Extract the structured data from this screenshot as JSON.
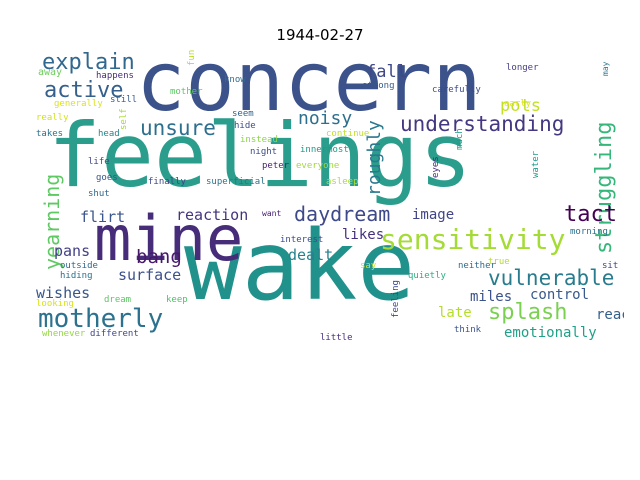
{
  "title": "1944-02-27",
  "words": [
    {
      "text": "concern",
      "color": "#3b528b"
    },
    {
      "text": "feelings",
      "color": "#2a9d8c"
    },
    {
      "text": "wake",
      "color": "#21918c"
    },
    {
      "text": "mine",
      "color": "#472c7a"
    },
    {
      "text": "sensitivity",
      "color": "#a5db36"
    },
    {
      "text": "motherly",
      "color": "#2c728e"
    },
    {
      "text": "struggling",
      "color": "#35b779"
    },
    {
      "text": "understanding",
      "color": "#453781"
    },
    {
      "text": "daydream",
      "color": "#3e4989"
    },
    {
      "text": "explain",
      "color": "#31688e"
    },
    {
      "text": "active",
      "color": "#355f8d"
    },
    {
      "text": "unsure",
      "color": "#2e6f8e"
    },
    {
      "text": "vulnerable",
      "color": "#287c8e"
    },
    {
      "text": "tact",
      "color": "#440154"
    },
    {
      "text": "splash",
      "color": "#7ad151"
    },
    {
      "text": "yearning",
      "color": "#5ec962"
    },
    {
      "text": "bang",
      "color": "#48186a"
    },
    {
      "text": "roughly",
      "color": "#2a788e"
    },
    {
      "text": "noisy",
      "color": "#2d708e"
    },
    {
      "text": "fall",
      "color": "#3f4889"
    },
    {
      "text": "pots",
      "color": "#c2df23"
    },
    {
      "text": "reaction",
      "color": "#46337e"
    },
    {
      "text": "flirt",
      "color": "#3a548c"
    },
    {
      "text": "image",
      "color": "#404588"
    },
    {
      "text": "likes",
      "color": "#46307e"
    },
    {
      "text": "pans",
      "color": "#424086"
    },
    {
      "text": "surface",
      "color": "#3c508b"
    },
    {
      "text": "dealt",
      "color": "#26818e"
    },
    {
      "text": "wishes",
      "color": "#39568c"
    },
    {
      "text": "late",
      "color": "#b5de2b"
    },
    {
      "text": "miles",
      "color": "#3b518b"
    },
    {
      "text": "control",
      "color": "#38598c"
    },
    {
      "text": "reach",
      "color": "#34608d"
    },
    {
      "text": "emotionally",
      "color": "#1fa088"
    },
    {
      "text": "away",
      "color": "#6ccd5a"
    },
    {
      "text": "happens",
      "color": "#472d7b"
    },
    {
      "text": "generally",
      "color": "#dde318"
    },
    {
      "text": "really",
      "color": "#d2e21b"
    },
    {
      "text": "takes",
      "color": "#2c718e"
    },
    {
      "text": "still",
      "color": "#365c8d"
    },
    {
      "text": "fun",
      "color": "#b8de29"
    },
    {
      "text": "mother",
      "color": "#5ac864"
    },
    {
      "text": "know",
      "color": "#2f6c8e"
    },
    {
      "text": "head",
      "color": "#25848e"
    },
    {
      "text": "self",
      "color": "#a8db34"
    },
    {
      "text": "seem",
      "color": "#33638d"
    },
    {
      "text": "hide",
      "color": "#3d4e8a"
    },
    {
      "text": "instead",
      "color": "#8bd646"
    },
    {
      "text": "strong",
      "color": "#375a8c"
    },
    {
      "text": "carefully",
      "color": "#3e4a89"
    },
    {
      "text": "longer",
      "color": "#433e85"
    },
    {
      "text": "may",
      "color": "#2a768e"
    },
    {
      "text": "early",
      "color": "#e2e418"
    },
    {
      "text": "continue",
      "color": "#c0df25"
    },
    {
      "text": "innermost",
      "color": "#1f998a"
    },
    {
      "text": "much",
      "color": "#1e9d89"
    },
    {
      "text": "night",
      "color": "#3d4d8a"
    },
    {
      "text": "peter",
      "color": "#481f70"
    },
    {
      "text": "everyone",
      "color": "#9fda3a"
    },
    {
      "text": "life",
      "color": "#414487"
    },
    {
      "text": "goes",
      "color": "#3a548c"
    },
    {
      "text": "shut",
      "color": "#32658e"
    },
    {
      "text": "finally",
      "color": "#3f4788"
    },
    {
      "text": "superficial",
      "color": "#2c738e"
    },
    {
      "text": "asleep",
      "color": "#addc30"
    },
    {
      "text": "eyes",
      "color": "#482878"
    },
    {
      "text": "water",
      "color": "#1e9b8a"
    },
    {
      "text": "want",
      "color": "#482173"
    },
    {
      "text": "interest",
      "color": "#3e4c8a"
    },
    {
      "text": "morning",
      "color": "#2d708e"
    },
    {
      "text": "outside",
      "color": "#31678e"
    },
    {
      "text": "say",
      "color": "#d0e11c"
    },
    {
      "text": "true",
      "color": "#b2dd2d"
    },
    {
      "text": "neither",
      "color": "#306a8e"
    },
    {
      "text": "sit",
      "color": "#404688"
    },
    {
      "text": "hiding",
      "color": "#2c718e"
    },
    {
      "text": "quietly",
      "color": "#2ab07f"
    },
    {
      "text": "looking",
      "color": "#d8e219"
    },
    {
      "text": "dream",
      "color": "#5cc863"
    },
    {
      "text": "keep",
      "color": "#4ec36b"
    },
    {
      "text": "feeling",
      "color": "#3e4a89"
    },
    {
      "text": "think",
      "color": "#3b528b"
    },
    {
      "text": "whenever",
      "color": "#93d741"
    },
    {
      "text": "different",
      "color": "#3f4788"
    },
    {
      "text": "little",
      "color": "#472e7c"
    }
  ]
}
